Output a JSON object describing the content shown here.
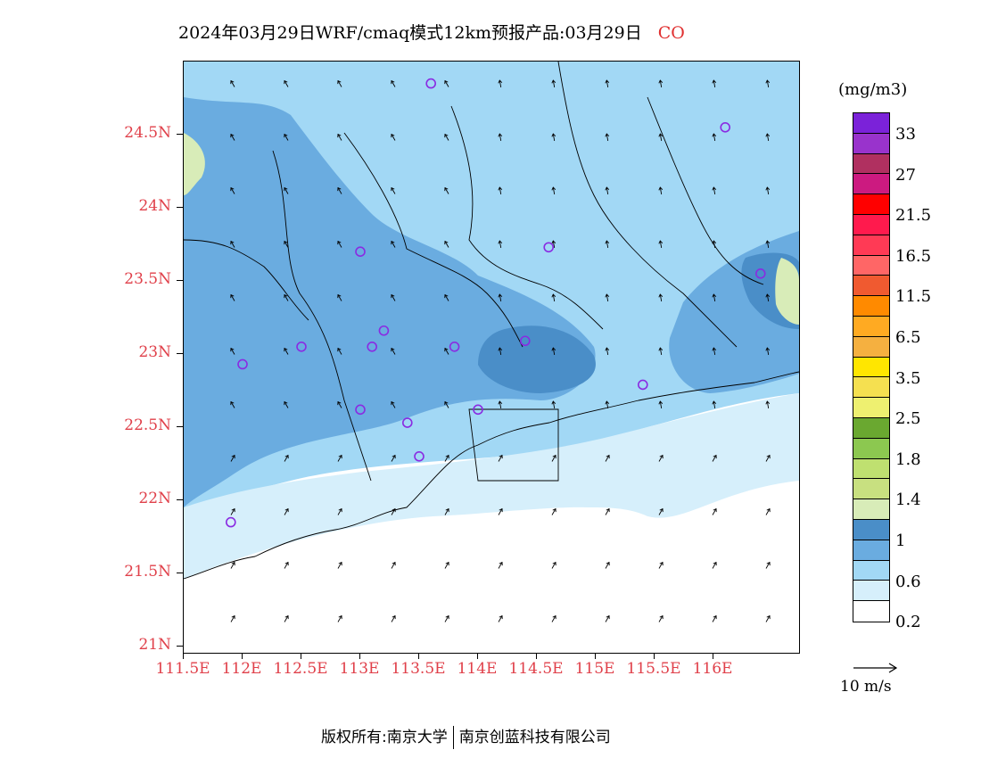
{
  "title": {
    "text": "2024年03月29日WRF/cmaq模式12km预报产品:03月29日",
    "species": "CO"
  },
  "chart_data": {
    "type": "heatmap",
    "title": "2024年03月29日WRF/cmaq模式12km预报产品:03月29日 CO",
    "x_ticks": [
      "111.5E",
      "112E",
      "112.5E",
      "113E",
      "113.5E",
      "114E",
      "114.5E",
      "115E",
      "115.5E",
      "116E"
    ],
    "y_ticks": [
      "21N",
      "21.5N",
      "22N",
      "22.5N",
      "23N",
      "23.5N",
      "24N",
      "24.5N"
    ],
    "xlim": [
      111.5,
      116.5
    ],
    "ylim": [
      21.0,
      25.0
    ],
    "unit": "(mg/m3)",
    "colorbar_labels": [
      "33",
      "27",
      "21.5",
      "16.5",
      "11.5",
      "6.5",
      "3.5",
      "2.5",
      "1.8",
      "1.4",
      "1",
      "0.6",
      "0.2"
    ],
    "colorbar_colors": [
      "#7b22d9",
      "#9933cc",
      "#b03060",
      "#cc1a80",
      "#ff0000",
      "#ff1a4d",
      "#ff3a55",
      "#ff6666",
      "#f05a30",
      "#ff8a00",
      "#ffaa22",
      "#f5b040",
      "#ffe600",
      "#f5e050",
      "#eef070",
      "#6aa830",
      "#8cc850",
      "#bfe070",
      "#c8e080",
      "#d8ecb8",
      "#4a8ec8",
      "#6aace0",
      "#a2d8f5",
      "#d6effb",
      "#ffffff"
    ],
    "stations": [
      {
        "lon": 113.6,
        "lat": 24.85
      },
      {
        "lon": 116.1,
        "lat": 24.55
      },
      {
        "lon": 113.0,
        "lat": 23.7
      },
      {
        "lon": 114.6,
        "lat": 23.73
      },
      {
        "lon": 116.4,
        "lat": 23.55
      },
      {
        "lon": 113.2,
        "lat": 23.16
      },
      {
        "lon": 112.5,
        "lat": 23.05
      },
      {
        "lon": 113.1,
        "lat": 23.05
      },
      {
        "lon": 113.8,
        "lat": 23.05
      },
      {
        "lon": 114.4,
        "lat": 23.09
      },
      {
        "lon": 112.0,
        "lat": 22.93
      },
      {
        "lon": 115.4,
        "lat": 22.79
      },
      {
        "lon": 113.0,
        "lat": 22.62
      },
      {
        "lon": 114.0,
        "lat": 22.62
      },
      {
        "lon": 113.4,
        "lat": 22.53
      },
      {
        "lon": 113.5,
        "lat": 22.3
      },
      {
        "lon": 111.9,
        "lat": 21.85
      }
    ]
  },
  "vector_reference": {
    "label": "10 m/s"
  },
  "footer": {
    "left": "版权所有:南京大学",
    "right": "南京创蓝科技有限公司"
  }
}
